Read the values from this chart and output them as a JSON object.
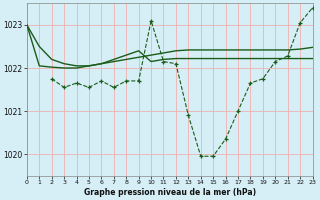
{
  "background_color": "#d6eef5",
  "grid_color": "#f0b0b0",
  "line_color": "#1a5c1a",
  "title": "Graphe pression niveau de la mer (hPa)",
  "xlim": [
    0,
    23
  ],
  "ylim": [
    1019.5,
    1023.5
  ],
  "yticks": [
    1020,
    1021,
    1022,
    1023
  ],
  "xticks": [
    0,
    1,
    2,
    3,
    4,
    5,
    6,
    7,
    8,
    9,
    10,
    11,
    12,
    13,
    14,
    15,
    16,
    17,
    18,
    19,
    20,
    21,
    22,
    23
  ],
  "series1_x": [
    0,
    1,
    2,
    3,
    4,
    5,
    6,
    7,
    8,
    9,
    10,
    11,
    12,
    13,
    14,
    15,
    16,
    17,
    18,
    19,
    20,
    21,
    22,
    23
  ],
  "series1_y": [
    1023.0,
    1022.5,
    1022.2,
    1022.1,
    1022.05,
    1022.05,
    1022.1,
    1022.15,
    1022.2,
    1022.25,
    1022.3,
    1022.35,
    1022.4,
    1022.42,
    1022.42,
    1022.42,
    1022.42,
    1022.42,
    1022.42,
    1022.42,
    1022.42,
    1022.42,
    1022.44,
    1022.48
  ],
  "series2_x": [
    0,
    1,
    2,
    3,
    4,
    5,
    6,
    7,
    8,
    9,
    10,
    11,
    12,
    13,
    14,
    15,
    16,
    17,
    18,
    19,
    20,
    21,
    22,
    23
  ],
  "series2_y": [
    1023.0,
    1022.05,
    1022.02,
    1022.0,
    1022.0,
    1022.05,
    1022.1,
    1022.2,
    1022.3,
    1022.4,
    1022.15,
    1022.2,
    1022.22,
    1022.22,
    1022.22,
    1022.22,
    1022.22,
    1022.22,
    1022.22,
    1022.22,
    1022.22,
    1022.22,
    1022.22,
    1022.22
  ],
  "series3_x": [
    2,
    3,
    4,
    5,
    6,
    7,
    8,
    9,
    10,
    11,
    12,
    13,
    14,
    15,
    16,
    17,
    18,
    19,
    20,
    21,
    22,
    23
  ],
  "series3_y": [
    1021.75,
    1021.55,
    1021.65,
    1021.55,
    1021.7,
    1021.55,
    1021.7,
    1021.7,
    1023.1,
    1022.15,
    1022.1,
    1020.9,
    1019.95,
    1019.95,
    1020.35,
    1021.0,
    1021.65,
    1021.75,
    1022.15,
    1022.28,
    1023.05,
    1023.4
  ]
}
